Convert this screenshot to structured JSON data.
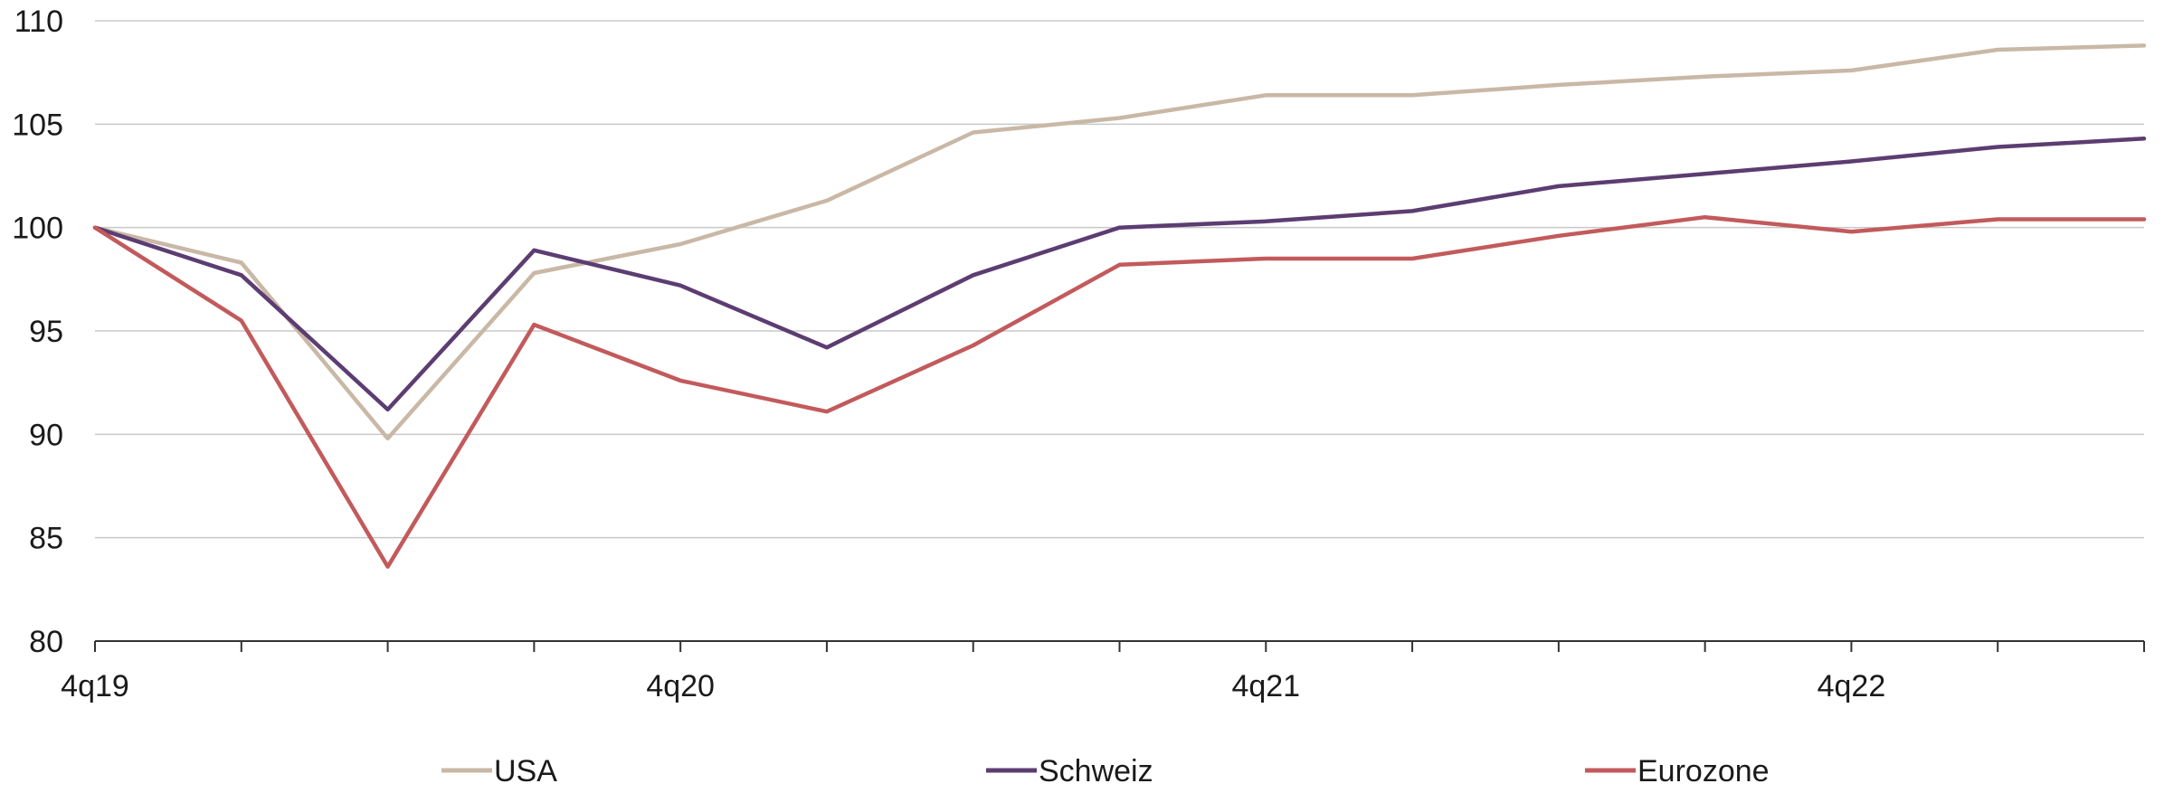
{
  "chart_data": {
    "type": "line",
    "title": "",
    "xlabel": "",
    "ylabel": "",
    "ylim": [
      80,
      110
    ],
    "yticks": [
      80,
      85,
      90,
      95,
      100,
      105,
      110
    ],
    "grid": true,
    "legend_position": "bottom",
    "x": [
      "4q19",
      "1q20",
      "2q20",
      "3q20",
      "4q20",
      "1q21",
      "2q21",
      "3q21",
      "4q21",
      "1q22",
      "2q22",
      "3q22",
      "4q22",
      "1q23",
      "2q23"
    ],
    "x_tick_labels": [
      "4q19",
      "4q20",
      "4q21",
      "4q22"
    ],
    "series": [
      {
        "name": "USA",
        "color": "#c9b8a6",
        "values": [
          100,
          98.3,
          89.8,
          97.8,
          99.2,
          101.3,
          104.6,
          105.3,
          106.4,
          106.4,
          106.9,
          107.3,
          107.6,
          108.6,
          108.8
        ]
      },
      {
        "name": "Schweiz",
        "color": "#5c3d72",
        "values": [
          100,
          97.7,
          91.2,
          98.9,
          97.2,
          94.2,
          97.7,
          100.0,
          100.3,
          100.8,
          102.0,
          102.6,
          103.2,
          103.9,
          104.3
        ]
      },
      {
        "name": "Eurozone",
        "color": "#c25a5c",
        "values": [
          100,
          95.5,
          83.6,
          95.3,
          92.6,
          91.1,
          94.3,
          98.2,
          98.5,
          98.5,
          99.6,
          100.5,
          99.8,
          100.4,
          100.4
        ]
      }
    ]
  }
}
